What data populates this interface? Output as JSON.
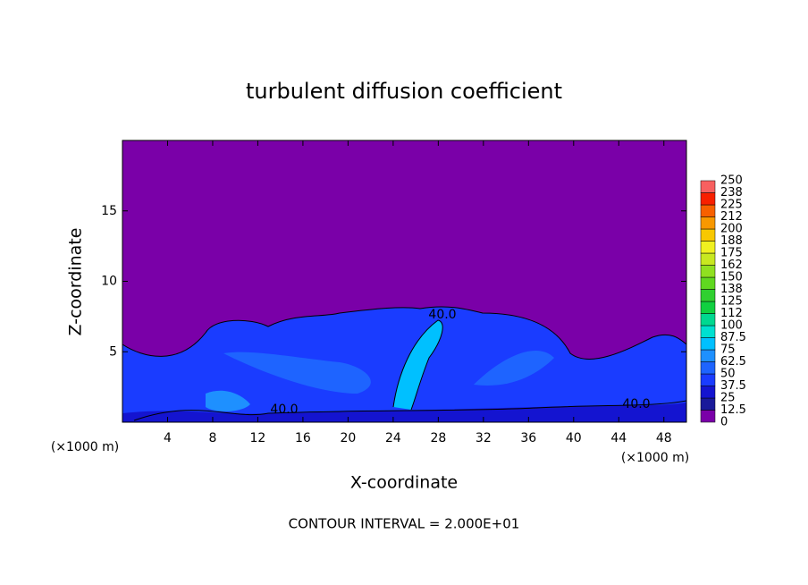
{
  "chart_data": {
    "type": "contour",
    "title": "turbulent diffusion coefficient",
    "xlabel": "X-coordinate",
    "ylabel": "Z-coordinate",
    "xunit": "(×1000 m)",
    "yunit": "(×1000 m)",
    "xlim": [
      0,
      50
    ],
    "xticks": [
      4,
      8,
      12,
      16,
      20,
      24,
      28,
      32,
      36,
      40,
      44,
      48
    ],
    "ylim": [
      0,
      20
    ],
    "yticks": [
      5,
      10,
      15
    ],
    "levels": [
      0,
      12.5,
      25,
      37.5,
      50,
      62.5,
      75,
      87.5,
      100,
      {
        "value": 112.5,
        "label": "112"
      },
      125,
      {
        "value": 137.5,
        "label": "138"
      },
      150,
      {
        "value": 162.5,
        "label": "162"
      },
      175,
      {
        "value": 187.5,
        "label": "188"
      },
      200,
      {
        "value": 212.5,
        "label": "212"
      },
      225,
      {
        "value": 237.5,
        "label": "238"
      },
      250
    ],
    "colors": [
      "#7a00a8",
      "#1a1a9a",
      "#1414d0",
      "#1a3cff",
      "#1e64ff",
      "#1e90ff",
      "#00c0ff",
      "#00e0d0",
      "#00d890",
      "#10d040",
      "#30d030",
      "#60d820",
      "#90e020",
      "#c8e820",
      "#f0f020",
      "#f8c800",
      "#f89800",
      "#f86000",
      "#f82000",
      "#f86060"
    ],
    "contour_labels": [
      "40.0",
      "40.0",
      "40.0"
    ],
    "annotation": "CONTOUR INTERVAL = 2.000E+01"
  }
}
